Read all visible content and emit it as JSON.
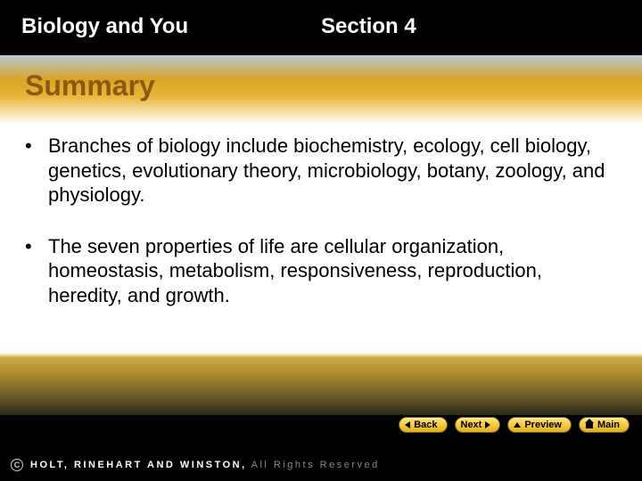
{
  "header": {
    "chapter_title": "Biology and You",
    "section_label": "Section 4"
  },
  "slide": {
    "title": "Summary",
    "bullets": [
      "Branches of biology include biochemistry, ecology, cell biology, genetics, evolutionary theory, microbiology, botany, zoology, and physiology.",
      "The seven properties of life are cellular organization, homeostasis, metabolism, responsiveness, reproduction, heredity, and growth."
    ]
  },
  "nav": {
    "back": "Back",
    "next": "Next",
    "preview": "Preview",
    "main": "Main"
  },
  "footer": {
    "publisher_bold": "HOLT, RINEHART AND WINSTON,",
    "rights": " All Rights Reserved"
  },
  "colors": {
    "header_bg": "#000000",
    "title_color": "#8a5a10",
    "button_face": "#f7c93f",
    "button_border": "#6a5212"
  }
}
